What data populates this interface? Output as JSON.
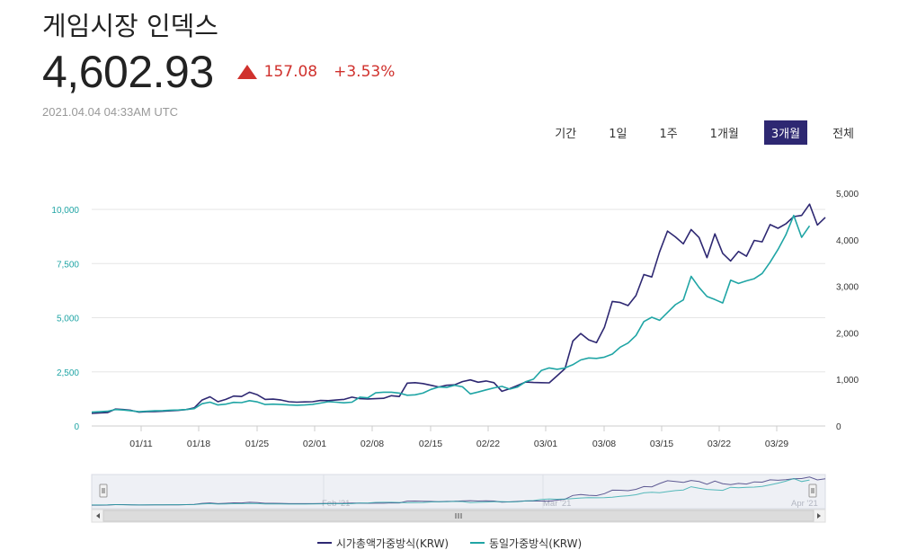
{
  "header": {
    "title": "게임시장 인덱스",
    "price": "4,602.93",
    "change": "157.08",
    "change_pct": "+3.53%",
    "timestamp": "2021.04.04 04:33AM UTC"
  },
  "range_selector": {
    "label": "기간",
    "options": [
      "1일",
      "1주",
      "1개월",
      "3개월",
      "전체"
    ],
    "active": "3개월"
  },
  "navigator": {
    "labels": [
      "Feb '21",
      "Mar '21",
      "Apr '21"
    ]
  },
  "colors": {
    "series_a": "#2e2872",
    "series_b": "#20a5a5",
    "up": "#d0312d"
  },
  "chart_data": {
    "type": "line",
    "x_ticks": [
      "01/11",
      "01/18",
      "01/25",
      "02/01",
      "02/08",
      "02/15",
      "02/22",
      "03/01",
      "03/08",
      "03/15",
      "03/22",
      "03/29"
    ],
    "y_left": {
      "ticks": [
        "0",
        "2,500",
        "5,000",
        "7,500",
        "10,000"
      ],
      "range": [
        0,
        10000
      ]
    },
    "y_right": {
      "ticks": [
        "0",
        "1,000",
        "2,000",
        "3,000",
        "4,000",
        "5,000"
      ],
      "range": [
        0,
        5000
      ]
    },
    "legend_position": "bottom",
    "grid": true,
    "series": [
      {
        "name": "시가총액가중방식(KRW)",
        "axis": "left",
        "values": [
          580,
          600,
          620,
          780,
          760,
          720,
          640,
          660,
          670,
          680,
          700,
          720,
          760,
          840,
          1200,
          1350,
          1120,
          1230,
          1380,
          1360,
          1560,
          1440,
          1230,
          1240,
          1200,
          1120,
          1100,
          1110,
          1120,
          1180,
          1170,
          1200,
          1230,
          1330,
          1260,
          1250,
          1260,
          1280,
          1400,
          1360,
          1980,
          2000,
          1960,
          1880,
          1800,
          1880,
          1900,
          2050,
          2130,
          2020,
          2080,
          2000,
          1600,
          1720,
          1870,
          2030,
          2010,
          2000,
          1990,
          2320,
          2650,
          3920,
          4270,
          3980,
          3850,
          4550,
          5750,
          5700,
          5560,
          6020,
          6990,
          6880,
          8040,
          9000,
          8730,
          8410,
          9070,
          8700,
          7770,
          8870,
          7970,
          7620,
          8060,
          7840,
          8570,
          8500,
          9300,
          9130,
          9330,
          9670,
          9720,
          10240,
          9280,
          9630
        ]
      },
      {
        "name": "동일가중방식(KRW)",
        "axis": "left",
        "values": [
          640,
          660,
          680,
          760,
          740,
          700,
          660,
          680,
          700,
          710,
          730,
          740,
          760,
          800,
          1030,
          1100,
          970,
          1010,
          1090,
          1080,
          1170,
          1110,
          990,
          1010,
          990,
          970,
          960,
          970,
          1000,
          1060,
          1120,
          1100,
          1070,
          1100,
          1330,
          1300,
          1530,
          1560,
          1560,
          1520,
          1420,
          1440,
          1520,
          1690,
          1800,
          1780,
          1880,
          1810,
          1480,
          1570,
          1670,
          1760,
          1830,
          1700,
          1800,
          2040,
          2160,
          2560,
          2680,
          2620,
          2680,
          2830,
          3050,
          3140,
          3120,
          3180,
          3320,
          3640,
          3830,
          4180,
          4820,
          5020,
          4880,
          5240,
          5600,
          5820,
          6910,
          6400,
          5980,
          5840,
          5680,
          6730,
          6580,
          6700,
          6800,
          7040,
          7560,
          8150,
          8820,
          9720,
          8710,
          9240
        ]
      }
    ]
  }
}
